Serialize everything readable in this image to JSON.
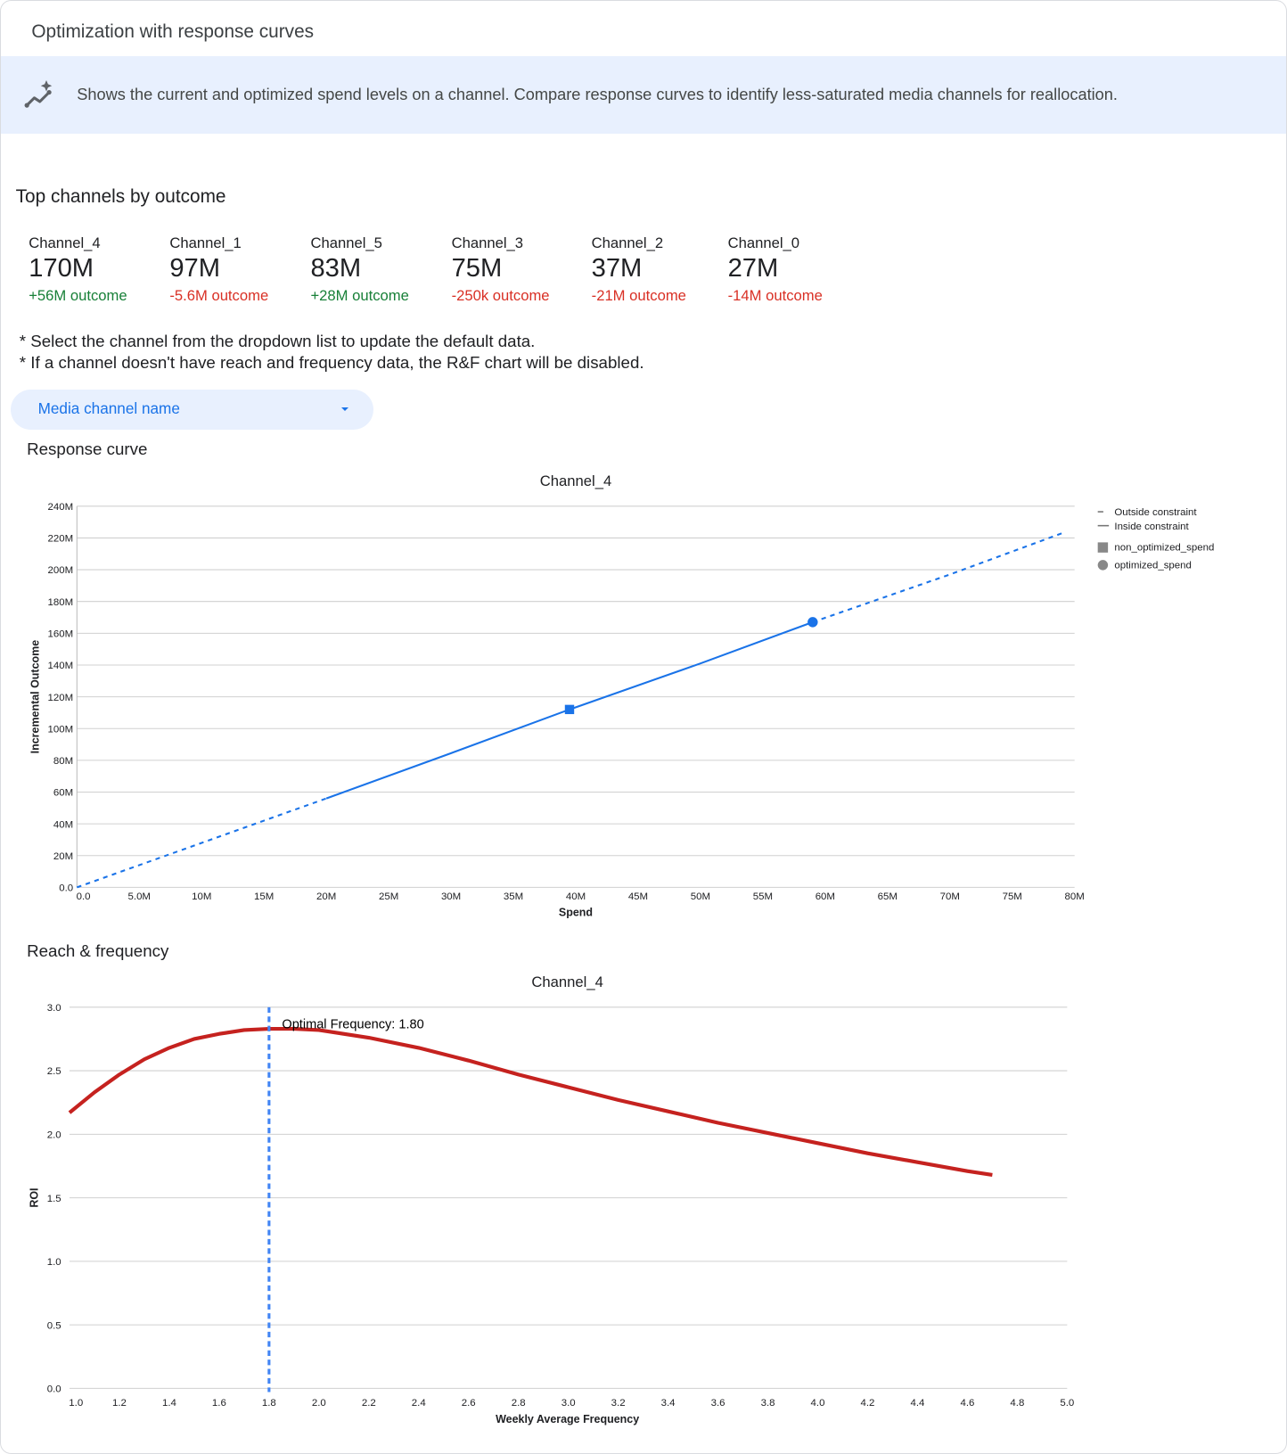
{
  "header": {
    "title": "Optimization with response curves"
  },
  "banner": {
    "icon": "sparkle-trend-icon",
    "text": "Shows the current and optimized spend levels on a channel. Compare response curves to identify less-saturated media channels for reallocation."
  },
  "top_channels": {
    "heading": "Top channels by outcome",
    "items": [
      {
        "name": "Channel_4",
        "value": "170M",
        "delta": "+56M outcome",
        "positive": true
      },
      {
        "name": "Channel_1",
        "value": "97M",
        "delta": "-5.6M outcome",
        "positive": false
      },
      {
        "name": "Channel_5",
        "value": "83M",
        "delta": "+28M outcome",
        "positive": true
      },
      {
        "name": "Channel_3",
        "value": "75M",
        "delta": "-250k outcome",
        "positive": false
      },
      {
        "name": "Channel_2",
        "value": "37M",
        "delta": "-21M outcome",
        "positive": false
      },
      {
        "name": "Channel_0",
        "value": "27M",
        "delta": "-14M outcome",
        "positive": false
      }
    ],
    "colors": {
      "positive": "#188038",
      "negative": "#d93025"
    }
  },
  "notes": [
    "* Select the channel from the dropdown list to update the default data.",
    "* If a channel doesn't have reach and frequency data, the R&F chart will be disabled."
  ],
  "dropdown": {
    "label": "Media channel name"
  },
  "response_section": {
    "heading": "Response curve"
  },
  "rf_section": {
    "heading": "Reach & frequency"
  },
  "chart_data": [
    {
      "type": "line",
      "title": "Channel_4",
      "xlabel": "Spend",
      "ylabel": "Incremental Outcome",
      "xlim": [
        0,
        80000000
      ],
      "ylim": [
        0,
        240000000
      ],
      "x_ticks": [
        "0.0",
        "5.0M",
        "10M",
        "15M",
        "20M",
        "25M",
        "30M",
        "35M",
        "40M",
        "45M",
        "50M",
        "55M",
        "60M",
        "65M",
        "70M",
        "75M",
        "80M"
      ],
      "y_ticks": [
        "0.0",
        "20M",
        "40M",
        "60M",
        "80M",
        "100M",
        "120M",
        "140M",
        "160M",
        "180M",
        "200M",
        "220M",
        "240M"
      ],
      "grid": true,
      "legend_position": "right",
      "legend": [
        "Outside constraint",
        "Inside constraint",
        "non_optimized_spend",
        "optimized_spend"
      ],
      "color": "#1a73e8",
      "series_outside_low": {
        "x": [
          0,
          5000000,
          10000000,
          15000000,
          20000000
        ],
        "y": [
          0,
          14000000,
          28000000,
          42000000,
          56000000
        ]
      },
      "series_inside": {
        "x": [
          20000000,
          30000000,
          39500000,
          50000000,
          59000000
        ],
        "y": [
          56000000,
          84500000,
          112000000,
          141000000,
          167000000
        ]
      },
      "series_outside_high": {
        "x": [
          59000000,
          70000000,
          79000000
        ],
        "y": [
          167000000,
          197000000,
          223000000
        ]
      },
      "non_optimized_spend": {
        "x": 39500000,
        "y": 112000000
      },
      "optimized_spend": {
        "x": 59000000,
        "y": 167000000
      }
    },
    {
      "type": "line",
      "title": "Channel_4",
      "xlabel": "Weekly Average Frequency",
      "ylabel": "ROI",
      "xlim": [
        1.0,
        5.0
      ],
      "ylim": [
        0,
        3.0
      ],
      "x_ticks": [
        "1.0",
        "1.2",
        "1.4",
        "1.6",
        "1.8",
        "2.0",
        "2.2",
        "2.4",
        "2.6",
        "2.8",
        "3.0",
        "3.2",
        "3.4",
        "3.6",
        "3.8",
        "4.0",
        "4.2",
        "4.4",
        "4.6",
        "4.8",
        "5.0"
      ],
      "y_ticks": [
        "0.0",
        "0.5",
        "1.0",
        "1.5",
        "2.0",
        "2.5",
        "3.0"
      ],
      "grid": true,
      "color": "#c5221f",
      "ref_color": "#4285f4",
      "x": [
        1.0,
        1.1,
        1.2,
        1.3,
        1.4,
        1.5,
        1.6,
        1.7,
        1.8,
        1.9,
        2.0,
        2.2,
        2.4,
        2.6,
        2.8,
        3.0,
        3.2,
        3.4,
        3.6,
        3.8,
        4.0,
        4.2,
        4.4,
        4.6,
        4.7
      ],
      "y": [
        2.17,
        2.33,
        2.47,
        2.59,
        2.68,
        2.75,
        2.79,
        2.82,
        2.83,
        2.83,
        2.82,
        2.76,
        2.68,
        2.58,
        2.47,
        2.37,
        2.27,
        2.18,
        2.09,
        2.01,
        1.93,
        1.85,
        1.78,
        1.71,
        1.68
      ],
      "optimal_frequency": 1.8,
      "annotation": "Optimal Frequency: 1.80"
    }
  ]
}
